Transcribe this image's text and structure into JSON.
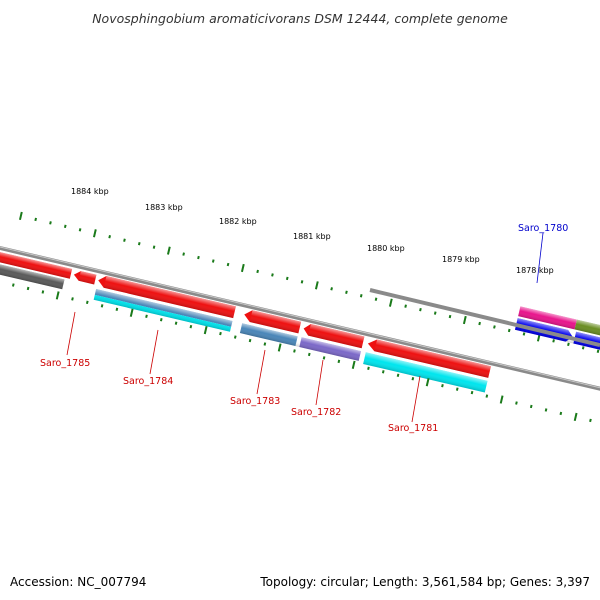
{
  "title": "Novosphingobium aromaticivorans DSM 12444, complete genome",
  "footer": {
    "accession": "Accession: NC_007794",
    "stats": "Topology: circular; Length: 3,561,584 bp; Genes: 3,397"
  },
  "scale_labels": [
    "1884 kbp",
    "1883 kbp",
    "1882 kbp",
    "1881 kbp",
    "1880 kbp",
    "1879 kbp",
    "1878 kbp"
  ],
  "gene_labels": [
    {
      "text": "Saro_1785",
      "color": "#cc0000"
    },
    {
      "text": "Saro_1784",
      "color": "#cc0000"
    },
    {
      "text": "Saro_1783",
      "color": "#cc0000"
    },
    {
      "text": "Saro_1782",
      "color": "#cc0000"
    },
    {
      "text": "Saro_1781",
      "color": "#cc0000"
    },
    {
      "text": "Saro_1780",
      "color": "#0000cc"
    }
  ],
  "colors": {
    "backbone": "#888888",
    "tick": "#1a7a1a",
    "gene_red": "#ee1111",
    "gene_blue": "#0000ee",
    "gene_magenta": "#e8158c",
    "gene_olive": "#6b8e23",
    "gene_grey": "#555555",
    "cog_steelblue": "#4a86b8",
    "cog_purple": "#7b68c8",
    "cog_cyan": "#00e5ee"
  }
}
